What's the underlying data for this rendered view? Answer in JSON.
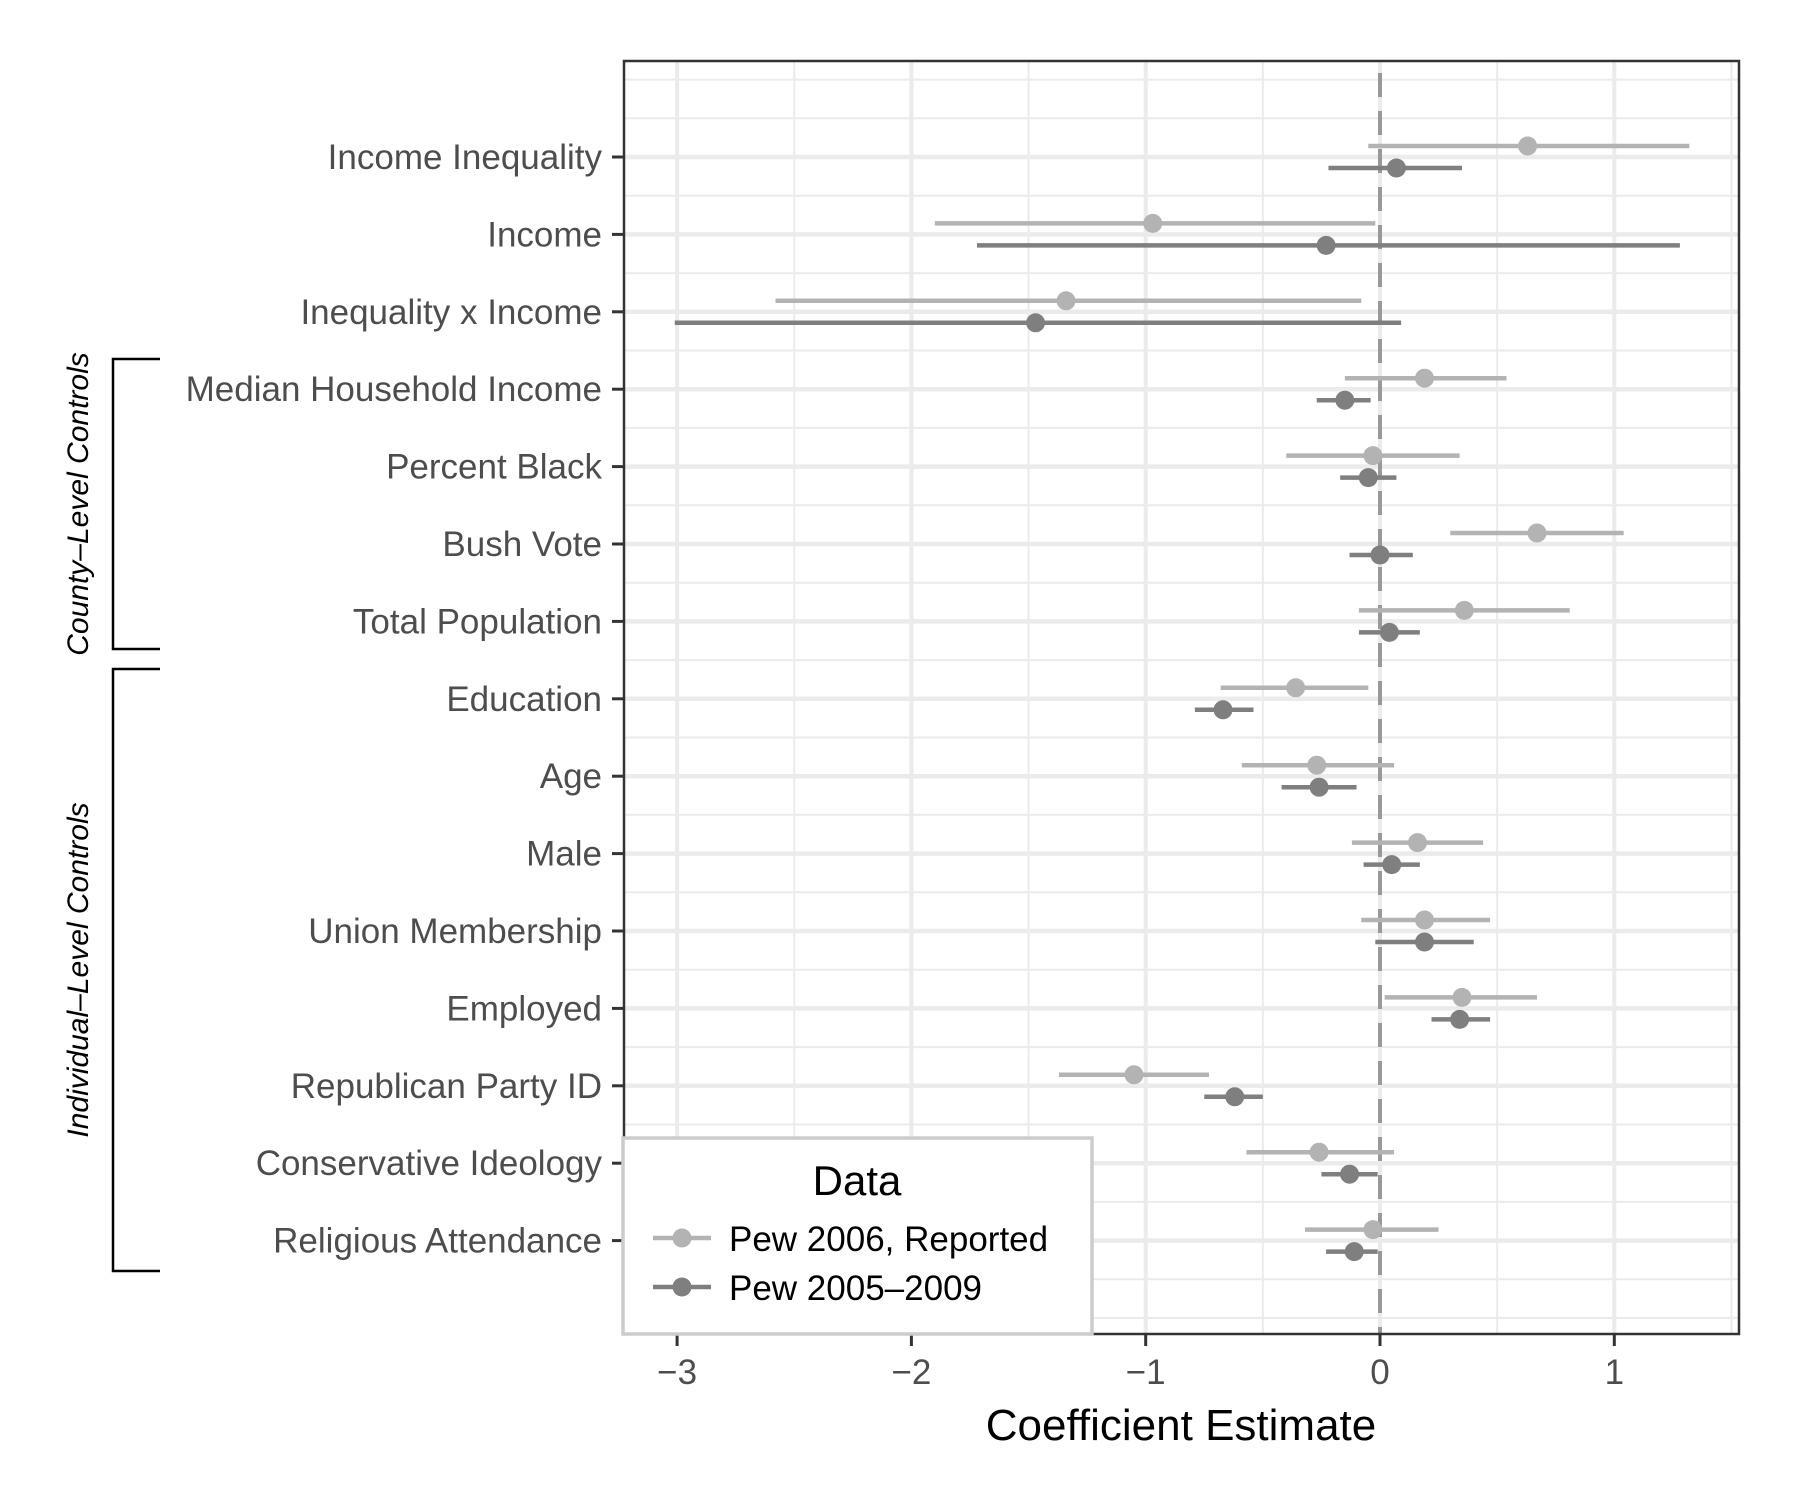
{
  "chart_data": {
    "type": "scatter",
    "subtype": "coefficient-plot-with-intervals",
    "title": "",
    "xlabel": "Coefficient Estimate",
    "ylabel": "",
    "xlim": [
      -3.23,
      1.53
    ],
    "x_ticks": [
      -3,
      -2,
      -1,
      0,
      1
    ],
    "x_tick_labels": [
      "−3",
      "−2",
      "−1",
      "0",
      "1"
    ],
    "reference_line": 0,
    "grid": true,
    "categories": [
      "Income Inequality",
      "Income",
      "Inequality x Income",
      "Median Household Income",
      "Percent Black",
      "Bush Vote",
      "Total Population",
      "Education",
      "Age",
      "Male",
      "Union Membership",
      "Employed",
      "Republican Party ID",
      "Conservative Ideology",
      "Religious Attendance"
    ],
    "groups": [
      {
        "label": "County–Level Controls",
        "from": "Median Household Income",
        "to": "Total Population"
      },
      {
        "label": "Individual–Level Controls",
        "from": "Education",
        "to": "Religious Attendance"
      }
    ],
    "legend": {
      "title": "Data",
      "position": "bottom-left"
    },
    "series": [
      {
        "name": "Pew 2006, Reported",
        "color": "#b3b3b3",
        "estimates": [
          0.63,
          -0.97,
          -1.34,
          0.19,
          -0.03,
          0.67,
          0.36,
          -0.36,
          -0.27,
          0.16,
          0.19,
          0.35,
          -1.05,
          -0.26,
          -0.03
        ],
        "lower": [
          -0.05,
          -1.9,
          -2.58,
          -0.15,
          -0.4,
          0.3,
          -0.09,
          -0.68,
          -0.59,
          -0.12,
          -0.08,
          0.02,
          -1.37,
          -0.57,
          -0.32
        ],
        "upper": [
          1.32,
          -0.02,
          -0.08,
          0.54,
          0.34,
          1.04,
          0.81,
          -0.05,
          0.06,
          0.44,
          0.47,
          0.67,
          -0.73,
          0.06,
          0.25
        ]
      },
      {
        "name": "Pew 2005–2009",
        "color": "#7f7f7f",
        "estimates": [
          0.07,
          -0.23,
          -1.47,
          -0.15,
          -0.05,
          0.0,
          0.04,
          -0.67,
          -0.26,
          0.05,
          0.19,
          0.34,
          -0.62,
          -0.13,
          -0.11
        ],
        "lower": [
          -0.22,
          -1.72,
          -3.01,
          -0.27,
          -0.17,
          -0.13,
          -0.09,
          -0.79,
          -0.42,
          -0.07,
          -0.02,
          0.22,
          -0.75,
          -0.25,
          -0.23
        ],
        "upper": [
          0.35,
          1.28,
          0.09,
          -0.04,
          0.07,
          0.14,
          0.17,
          -0.54,
          -0.1,
          0.17,
          0.4,
          0.47,
          -0.5,
          -0.01,
          -0.01
        ]
      }
    ]
  }
}
